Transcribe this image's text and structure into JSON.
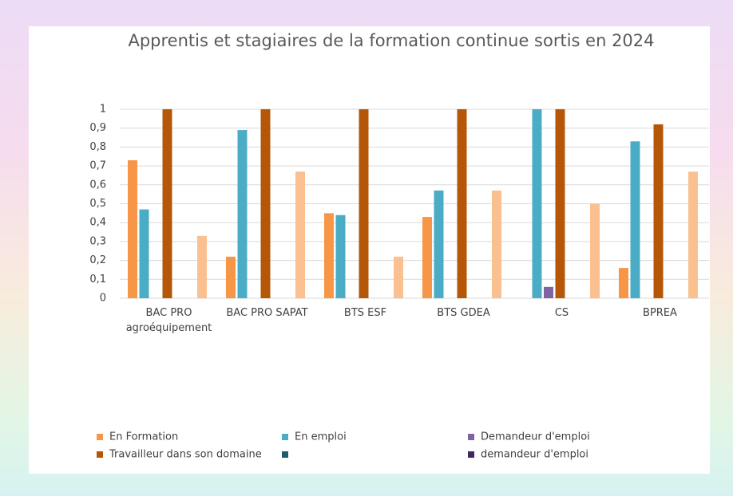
{
  "chart_data": {
    "type": "bar",
    "title": "Apprentis et stagiaires de la formation continue sortis en 2024",
    "categories": [
      "BAC PRO agroéquipement",
      "BAC PRO SAPAT",
      "BTS ESF",
      "BTS GDEA",
      "CS",
      "BPREA"
    ],
    "series": [
      {
        "name": "En Formation",
        "color": "#f79646",
        "values": [
          0.73,
          0.22,
          0.45,
          0.43,
          null,
          0.16
        ]
      },
      {
        "name": "En emploi",
        "color": "#4bacc6",
        "values": [
          0.47,
          0.89,
          0.44,
          0.57,
          1,
          0.83
        ]
      },
      {
        "name": "Demandeur d'emploi",
        "color": "#8064a2",
        "values": [
          null,
          null,
          null,
          null,
          0.06,
          null
        ]
      },
      {
        "name": "Travailleur dans son domaine",
        "color": "#b65708",
        "values": [
          1,
          1,
          1,
          1,
          1,
          0.92
        ]
      },
      {
        "name": null,
        "color": "#215968",
        "values": [
          null,
          null,
          null,
          null,
          null,
          null
        ]
      },
      {
        "name": "demandeur d'emploi",
        "color": "#3f2a5e",
        "values": [
          null,
          null,
          null,
          null,
          null,
          null
        ]
      },
      {
        "color": "#fac090",
        "values": [
          0.33,
          0.67,
          0.22,
          0.57,
          0.5,
          0.67
        ]
      }
    ],
    "ylim": [
      0,
      1
    ],
    "yticks": [
      0,
      {
        "value": 0.1,
        "label": "0,1"
      },
      {
        "value": 0.2,
        "label": "0,2"
      },
      {
        "value": 0.3,
        "label": "0,3"
      },
      {
        "value": 0.4,
        "label": "0,4"
      },
      {
        "value": 0.5,
        "label": "0,5"
      },
      {
        "value": 0.6,
        "label": "0,6"
      },
      {
        "value": 0.7,
        "label": "0,7"
      },
      {
        "value": 0.8,
        "label": "0,8"
      },
      {
        "value": 0.9,
        "label": "0,9"
      },
      1
    ],
    "grid": true
  }
}
